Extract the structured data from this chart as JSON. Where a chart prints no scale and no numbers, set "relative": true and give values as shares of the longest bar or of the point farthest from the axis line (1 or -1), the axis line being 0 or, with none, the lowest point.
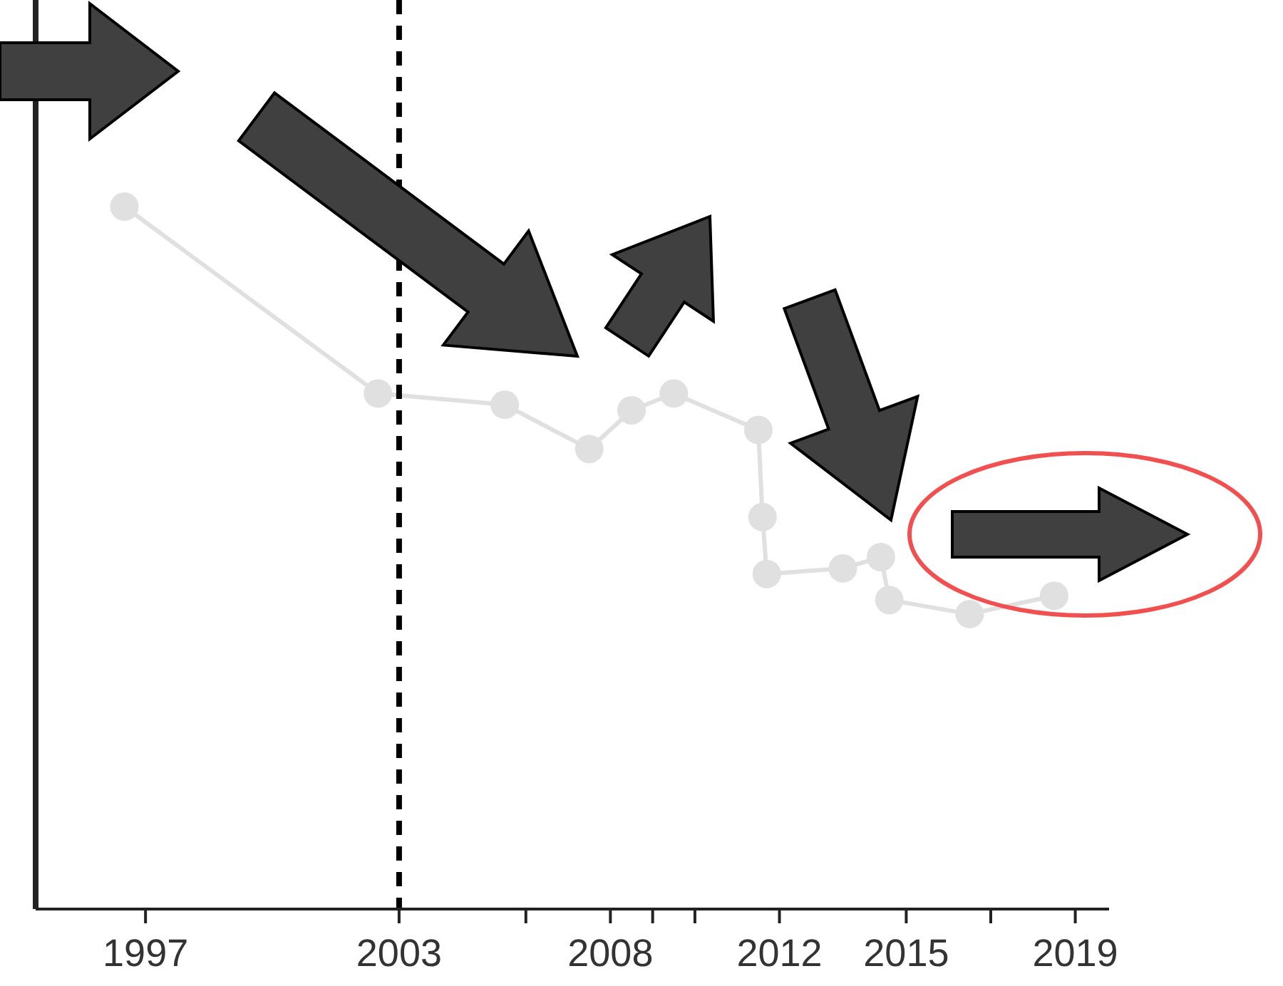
{
  "chart_data": {
    "type": "line",
    "relative": true,
    "marker": "circle",
    "xlim": [
      1994.4,
      2019.8
    ],
    "xticks": [
      1997,
      2003,
      {
        "value": 2006,
        "label": null
      },
      2008,
      {
        "value": 2009,
        "label": null
      },
      {
        "value": 2010,
        "label": null
      },
      2012,
      2015,
      {
        "value": 2017,
        "label": null
      },
      2019
    ],
    "series": [
      {
        "color": "#e0e0e0",
        "x": [
          1996.5,
          2002.5,
          2005.5,
          2007.5,
          2008.5,
          2009.5,
          2011.5,
          2011.6,
          2011.7,
          2013.5,
          2014.4,
          2014.6,
          2016.5,
          2018.5
        ],
        "values": [
          1,
          0.734,
          0.718,
          0.655,
          0.71,
          0.734,
          0.682,
          0.558,
          0.477,
          0.485,
          0.501,
          0.44,
          0.42,
          0.446
        ]
      }
    ],
    "ref_lines": [
      {
        "axis": "x",
        "value": 2003,
        "color": "#000000",
        "line_style": "dashed"
      }
    ]
  }
}
